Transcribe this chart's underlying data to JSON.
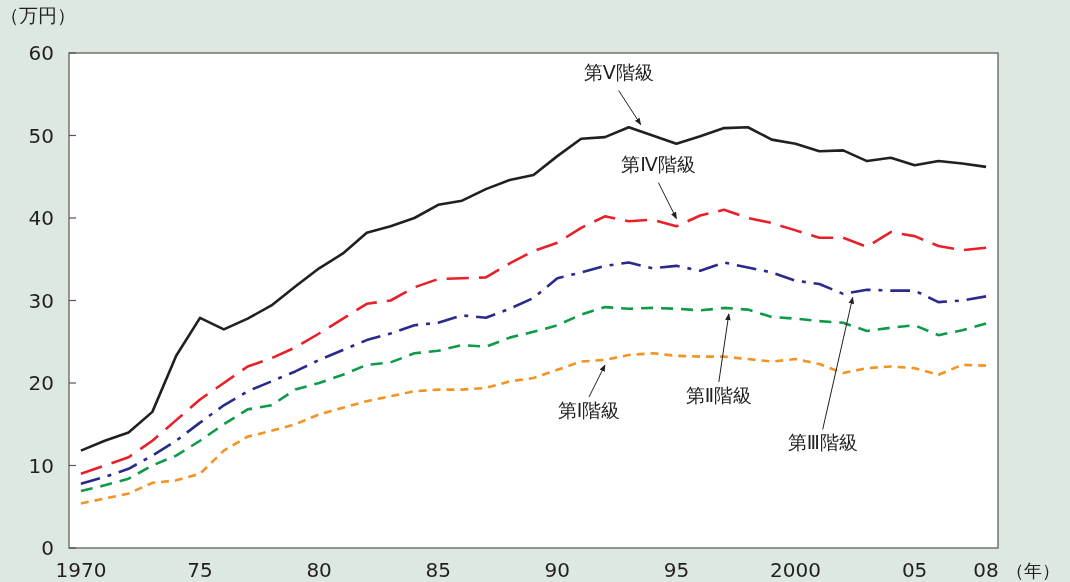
{
  "chart_data": {
    "type": "line",
    "xlabel": "（年）",
    "ylabel": "（万円）",
    "x": [
      1970,
      1971,
      1972,
      1973,
      1974,
      1975,
      1976,
      1977,
      1978,
      1979,
      1980,
      1981,
      1982,
      1983,
      1984,
      1985,
      1986,
      1987,
      1988,
      1989,
      1990,
      1991,
      1992,
      1993,
      1994,
      1995,
      1996,
      1997,
      1998,
      1999,
      2000,
      2001,
      2002,
      2003,
      2004,
      2005,
      2006,
      2007,
      2008
    ],
    "xlim": [
      1969.5,
      2008.5
    ],
    "xticks": [
      1970,
      {
        "value": 1975,
        "label": "75"
      },
      {
        "value": 1980,
        "label": "80"
      },
      {
        "value": 1985,
        "label": "85"
      },
      {
        "value": 1990,
        "label": "90"
      },
      {
        "value": 1995,
        "label": "95"
      },
      2000,
      {
        "value": 2005,
        "label": "05"
      },
      {
        "value": 2008,
        "label": "08"
      }
    ],
    "ylim": [
      0,
      60
    ],
    "yticks": [
      0,
      10,
      20,
      30,
      40,
      50,
      60
    ],
    "grid": false,
    "marker": "none",
    "series": [
      {
        "color": "#231f20",
        "line_style": "solid",
        "values": [
          11.8,
          13.0,
          14.0,
          16.5,
          23.3,
          27.9,
          26.5,
          27.8,
          29.4,
          31.7,
          33.9,
          35.7,
          38.2,
          39.0,
          40.0,
          41.6,
          42.1,
          43.5,
          44.6,
          45.2,
          47.5,
          49.6,
          49.8,
          51.0,
          50.0,
          49.0,
          49.9,
          50.9,
          51.0,
          49.5,
          49.0,
          48.1,
          48.2,
          46.9,
          47.3,
          46.4,
          46.9,
          46.6,
          46.2
        ]
      },
      {
        "color": "#e8202a",
        "line_style": "dashed",
        "values": [
          9.0,
          10.0,
          11.0,
          13.0,
          15.5,
          18.0,
          20.0,
          22.0,
          23.0,
          24.3,
          26.0,
          27.8,
          29.6,
          30.0,
          31.6,
          32.6,
          32.7,
          32.8,
          34.5,
          36.0,
          37.0,
          38.8,
          40.2,
          39.6,
          39.8,
          39.0,
          40.3,
          41.0,
          40.0,
          39.4,
          38.5,
          37.6,
          37.6,
          36.5,
          38.3,
          37.8,
          36.6,
          36.1,
          36.4
        ]
      },
      {
        "color": "#2a2a8c",
        "line_style": "dashdot",
        "values": [
          7.8,
          8.6,
          9.6,
          11.2,
          13.0,
          15.2,
          17.3,
          19.0,
          20.2,
          21.4,
          22.8,
          24.0,
          25.2,
          26.0,
          27.0,
          27.3,
          28.2,
          27.9,
          29.0,
          30.3,
          32.7,
          33.4,
          34.2,
          34.6,
          33.9,
          34.2,
          33.6,
          34.6,
          34.0,
          33.4,
          32.4,
          32.0,
          30.8,
          31.3,
          31.2,
          31.2,
          29.8,
          30.0,
          30.5
        ]
      },
      {
        "color": "#0f9a48",
        "line_style": "dashed",
        "values": [
          6.9,
          7.6,
          8.4,
          10.0,
          11.2,
          13.0,
          15.0,
          16.8,
          17.3,
          19.2,
          20.0,
          21.0,
          22.2,
          22.5,
          23.6,
          23.9,
          24.6,
          24.4,
          25.5,
          26.2,
          27.0,
          28.3,
          29.2,
          29.0,
          29.1,
          29.0,
          28.8,
          29.1,
          28.9,
          28.0,
          27.8,
          27.5,
          27.3,
          26.3,
          26.7,
          27.0,
          25.8,
          26.4,
          27.2
        ]
      },
      {
        "color": "#f39323",
        "line_style": "dashed",
        "values": [
          5.4,
          6.0,
          6.6,
          7.9,
          8.2,
          9.0,
          11.8,
          13.5,
          14.2,
          15.0,
          16.2,
          17.0,
          17.8,
          18.4,
          19.0,
          19.2,
          19.2,
          19.4,
          20.2,
          20.6,
          21.6,
          22.6,
          22.8,
          23.4,
          23.6,
          23.3,
          23.2,
          23.2,
          22.9,
          22.6,
          22.9,
          22.3,
          21.2,
          21.8,
          22.0,
          21.8,
          21.0,
          22.2,
          22.1
        ]
      }
    ],
    "annotations": [
      {
        "text": "第Ⅴ階級",
        "x": 1993.5,
        "y": 50.6
      },
      {
        "text": "第Ⅳ階級",
        "x": 1995,
        "y": 39.2
      },
      {
        "text": "第Ⅰ階級",
        "x": 1992,
        "y": 22.9
      },
      {
        "text": "第Ⅱ階級",
        "x": 1997.2,
        "y": 29.1
      },
      {
        "text": "第Ⅲ階級",
        "x": 2002.4,
        "y": 31.1
      }
    ]
  }
}
